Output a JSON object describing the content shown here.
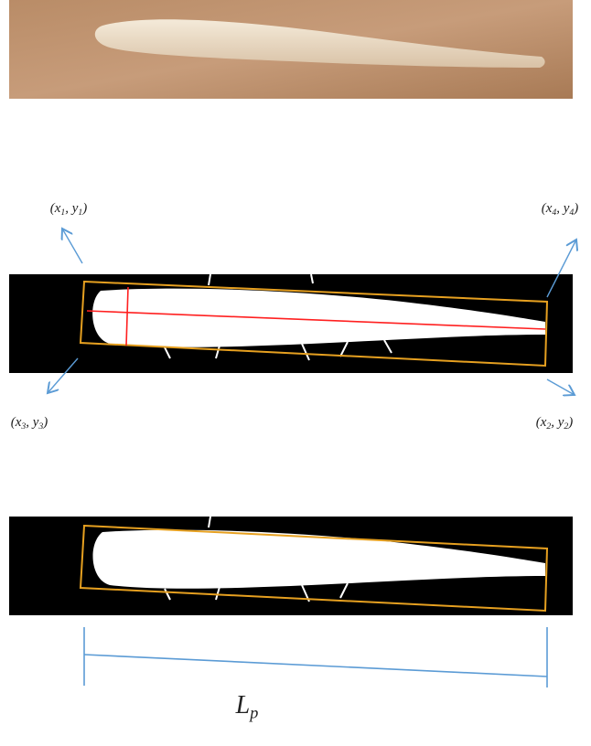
{
  "corner_labels": [
    {
      "pieces": [
        "(x",
        "1",
        ", y",
        "1",
        ")"
      ]
    },
    {
      "pieces": [
        "(x",
        "4",
        ", y",
        "4",
        ")"
      ]
    },
    {
      "pieces": [
        "(x",
        "3",
        ", y",
        "3",
        ")"
      ]
    },
    {
      "pieces": [
        "(x",
        "2",
        ", y",
        "2",
        ")"
      ]
    }
  ],
  "length_label": {
    "pieces": [
      "L",
      "p"
    ]
  }
}
